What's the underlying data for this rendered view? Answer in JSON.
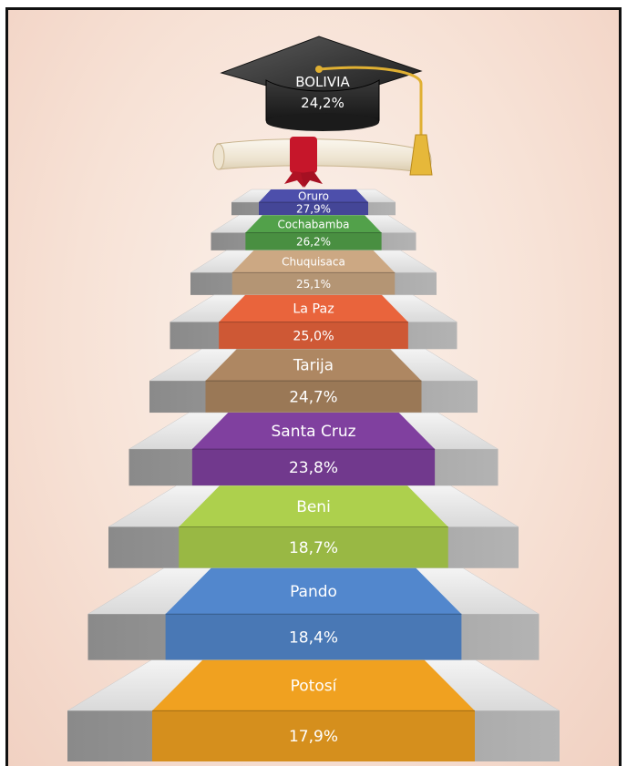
{
  "header_fragment": "",
  "chart_data": {
    "type": "bar",
    "title": "",
    "national": {
      "label": "BOLIVIA",
      "value_text": "24,2%",
      "value": 24.2
    },
    "categories": [
      "Potosí",
      "Pando",
      "Beni",
      "Santa Cruz",
      "Tarija",
      "La Paz",
      "Chuquisaca",
      "Cochabamba",
      "Oruro"
    ],
    "values": [
      17.9,
      18.4,
      18.7,
      23.8,
      24.7,
      25.0,
      25.1,
      26.2,
      27.9
    ],
    "value_labels": [
      "17,9%",
      "18,4%",
      "18,7%",
      "23,8%",
      "24,7%",
      "25,0%",
      "25,1%",
      "26,2%",
      "27,9%"
    ],
    "colors": [
      "#e79b1f",
      "#4f82c5",
      "#a6c84a",
      "#7b3e99",
      "#a7825e",
      "#e0603a",
      "#c4a27e",
      "#4f9b47",
      "#4a4ca4"
    ],
    "order": "ascending from bottom step to top step",
    "xlabel": "",
    "ylabel": ""
  }
}
